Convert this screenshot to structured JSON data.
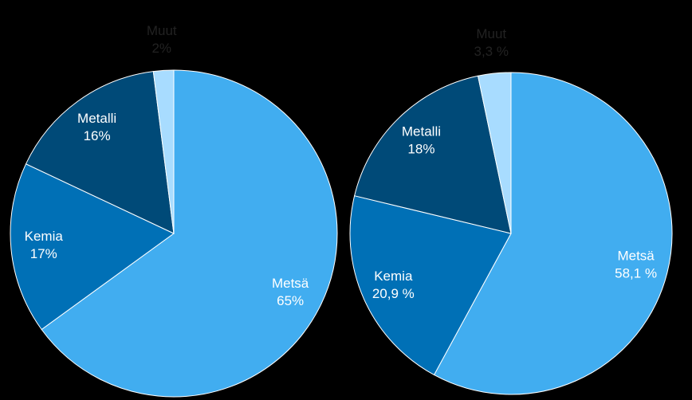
{
  "chart_data": [
    {
      "type": "pie",
      "categories": [
        "Metsä",
        "Kemia",
        "Metalli",
        "Muut"
      ],
      "values": [
        65,
        17,
        16,
        2
      ],
      "value_labels": [
        "65%",
        "17%",
        "16%",
        "2%"
      ],
      "colors": [
        "#41adf0",
        "#0070b6",
        "#004a78",
        "#a8dcff"
      ]
    },
    {
      "type": "pie",
      "categories": [
        "Metsä",
        "Kemia",
        "Metalli",
        "Muut"
      ],
      "values": [
        58.1,
        20.9,
        18,
        3.3
      ],
      "value_labels": [
        "58,1 %",
        "20,9 %",
        "18%",
        "3,3 %"
      ],
      "colors": [
        "#41adf0",
        "#0070b6",
        "#004a78",
        "#a8dcff"
      ]
    }
  ]
}
